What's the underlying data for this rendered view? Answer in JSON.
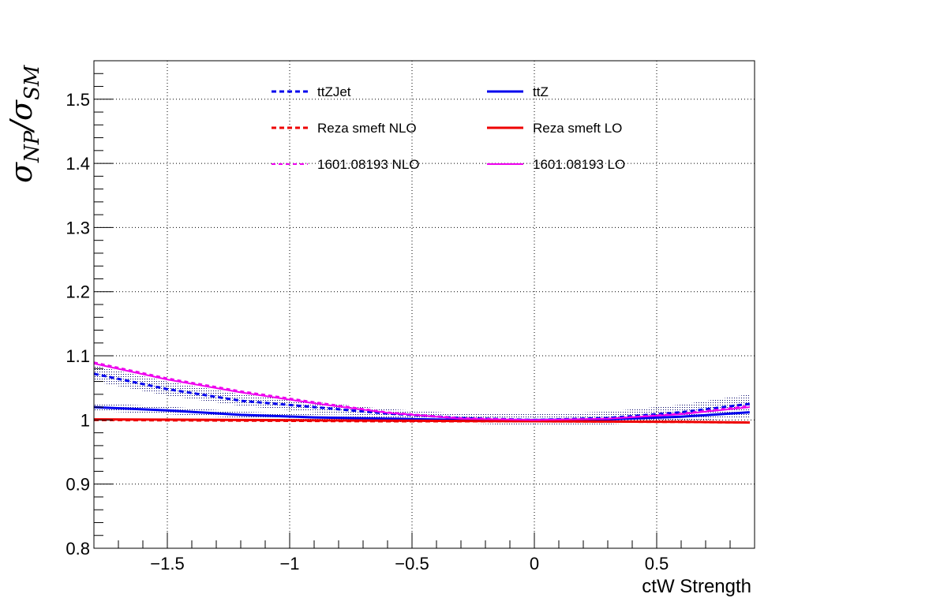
{
  "chart_data": {
    "type": "line",
    "xlabel": "ctW Strength",
    "ylabel": {
      "sym": "σ",
      "num_sub": "NP",
      "slash": "/",
      "den_sub": "SM"
    },
    "xlim": [
      -1.8,
      0.9
    ],
    "ylim": [
      0.8,
      1.56
    ],
    "xticks": [
      -1.5,
      -1,
      -0.5,
      0,
      0.5
    ],
    "xtick_labels": [
      "−1.5",
      "−1",
      "−0.5",
      "0",
      "0.5"
    ],
    "yticks": [
      0.8,
      0.9,
      1,
      1.1,
      1.2,
      1.3,
      1.4,
      1.5
    ],
    "ytick_labels": [
      "0.8",
      "0.9",
      "1",
      "1.1",
      "1.2",
      "1.3",
      "1.4",
      "1.5"
    ],
    "grid": true,
    "legend_position": "top-center",
    "series": [
      {
        "name": "ttZJet",
        "color": "#0000ee",
        "style": "dashed",
        "width": 3,
        "x": [
          -1.8,
          -1.5,
          -1.2,
          -0.9,
          -0.6,
          -0.3,
          0,
          0.3,
          0.6,
          0.88
        ],
        "y": [
          1.072,
          1.048,
          1.03,
          1.02,
          1.01,
          1.003,
          1.0,
          1.003,
          1.012,
          1.025
        ],
        "band": {
          "color": "#000066",
          "lower": [
            1.06,
            1.038,
            1.022,
            1.012,
            1.004,
            0.995,
            0.991,
            0.993,
            1.0,
            1.008
          ],
          "upper": [
            1.085,
            1.06,
            1.04,
            1.028,
            1.017,
            1.01,
            1.009,
            1.013,
            1.024,
            1.04
          ]
        }
      },
      {
        "name": "ttZ",
        "color": "#0000ee",
        "style": "solid",
        "width": 3,
        "x": [
          -1.8,
          -1.5,
          -1.2,
          -0.9,
          -0.6,
          -0.3,
          0,
          0.3,
          0.6,
          0.88
        ],
        "y": [
          1.02,
          1.015,
          1.008,
          1.004,
          1.002,
          1.0,
          1.0,
          1.001,
          1.005,
          1.012
        ],
        "band": {
          "color": "#000066",
          "lower": [
            1.014,
            1.009,
            1.003,
            0.999,
            0.997,
            0.995,
            0.994,
            0.995,
            0.998,
            1.004
          ],
          "upper": [
            1.026,
            1.021,
            1.013,
            1.009,
            1.007,
            1.005,
            1.006,
            1.007,
            1.012,
            1.02
          ]
        }
      },
      {
        "name": "Reza smeft NLO",
        "color": "#ee0000",
        "style": "dashed",
        "width": 3,
        "x": [
          -1.8,
          -1.2,
          -0.6,
          0,
          0.6,
          0.88
        ],
        "y": [
          1.0,
          0.999,
          0.998,
          0.998,
          0.997,
          0.996
        ]
      },
      {
        "name": "Reza smeft LO",
        "color": "#ee0000",
        "style": "solid",
        "width": 3,
        "x": [
          -1.8,
          -1.2,
          -0.6,
          0,
          0.6,
          0.88
        ],
        "y": [
          1.001,
          1.0,
          0.999,
          0.998,
          0.997,
          0.996
        ]
      },
      {
        "name": "1601.08193 NLO",
        "color": "#ee00ee",
        "style": "dashed",
        "width": 2,
        "x": [
          -1.8,
          -1.5,
          -1.2,
          -0.9,
          -0.6,
          -0.3,
          0,
          0.3,
          0.6,
          0.88
        ],
        "y": [
          1.09,
          1.065,
          1.045,
          1.028,
          1.012,
          1.003,
          1.0,
          1.002,
          1.01,
          1.022
        ]
      },
      {
        "name": "1601.08193 LO",
        "color": "#ee00ee",
        "style": "solid",
        "width": 2,
        "x": [
          -1.8,
          -1.5,
          -1.2,
          -0.9,
          -0.6,
          -0.3,
          0,
          0.3,
          0.6,
          0.88
        ],
        "y": [
          1.088,
          1.063,
          1.043,
          1.026,
          1.011,
          1.002,
          1.0,
          1.002,
          1.009,
          1.02
        ]
      }
    ]
  }
}
